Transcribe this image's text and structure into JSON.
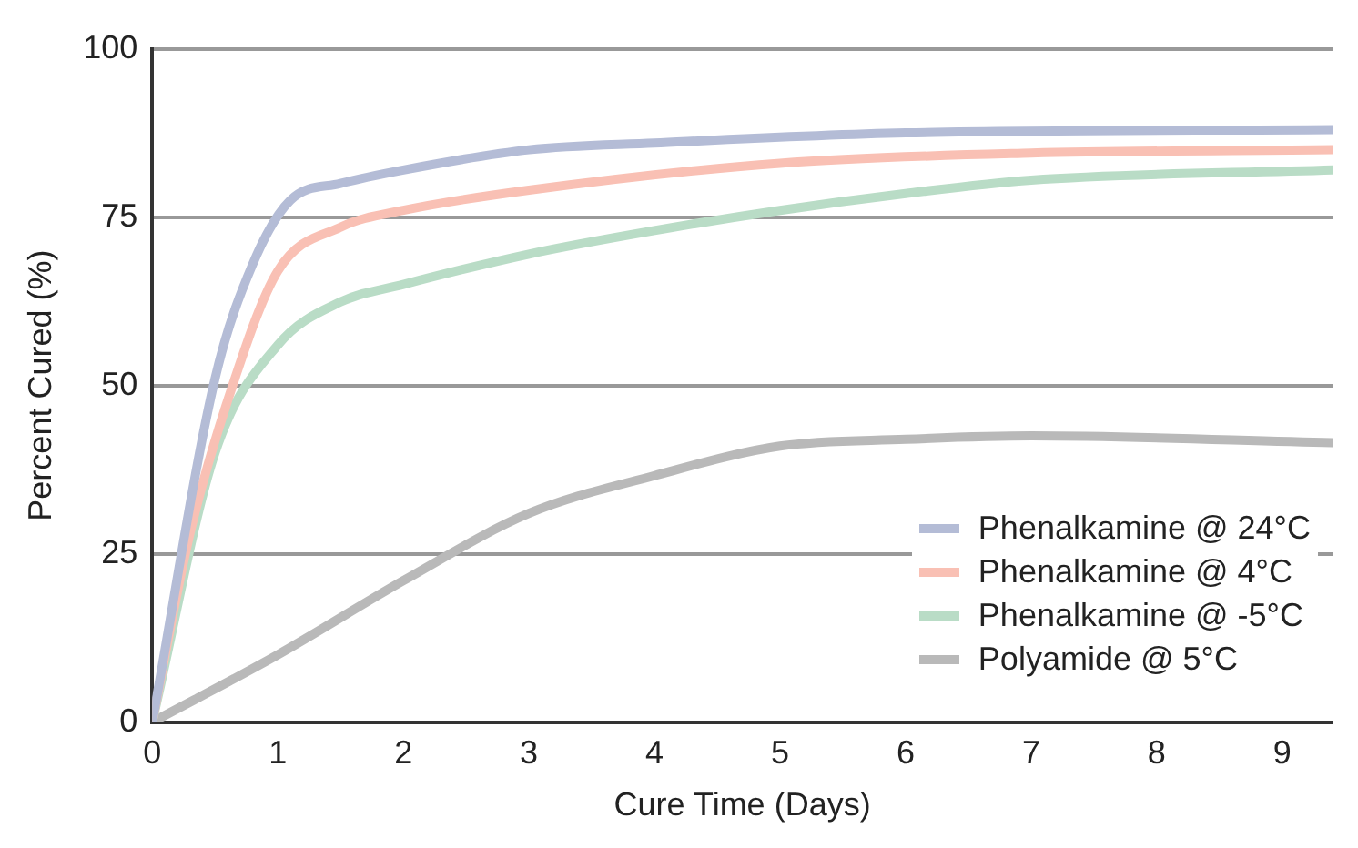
{
  "chart_data": {
    "type": "line",
    "xlabel": "Cure Time (Days)",
    "ylabel": "Percent Cured (%)",
    "xlim": [
      0,
      9.4
    ],
    "xticks": [
      0,
      1,
      2,
      3,
      4,
      5,
      6,
      7,
      8,
      9
    ],
    "ylim": [
      0,
      100
    ],
    "yticks": [
      0,
      25,
      50,
      75,
      100
    ],
    "grid": "y",
    "legend": "bottom right",
    "marker": "none",
    "line_style": "solid",
    "series": [
      {
        "name": "Phenalkamine @ 24°C",
        "color": "#b4bcd6",
        "x": [
          0,
          0.5,
          0.8,
          1.1,
          1.5,
          2,
          3,
          4,
          6,
          9.4
        ],
        "values": [
          0,
          51,
          68,
          77.5,
          80,
          82,
          85,
          86,
          87.5,
          88
        ]
      },
      {
        "name": "Phenalkamine @ 4°C",
        "color": "#f9c0b4",
        "x": [
          0,
          0.3,
          0.64,
          1,
          1.5,
          2,
          3,
          5,
          7,
          9.4
        ],
        "values": [
          0,
          28,
          50,
          67,
          73.5,
          76,
          79,
          83,
          84.5,
          85
        ]
      },
      {
        "name": "Phenalkamine @ -5°C",
        "color": "#b9dcc6",
        "x": [
          0,
          0.5,
          1,
          1.5,
          2,
          3,
          4,
          5,
          6,
          7,
          9.4
        ],
        "values": [
          0,
          40,
          56,
          62.4,
          65,
          69.5,
          73,
          76,
          78.5,
          80.5,
          82
        ]
      },
      {
        "name": "Polyamide @ 5°C",
        "color": "#b9b9b9",
        "x": [
          0,
          1,
          2,
          3,
          4,
          5,
          6,
          7,
          9.4
        ],
        "values": [
          0,
          10,
          21,
          31,
          36.6,
          41,
          42,
          42.5,
          41.5
        ]
      }
    ]
  }
}
